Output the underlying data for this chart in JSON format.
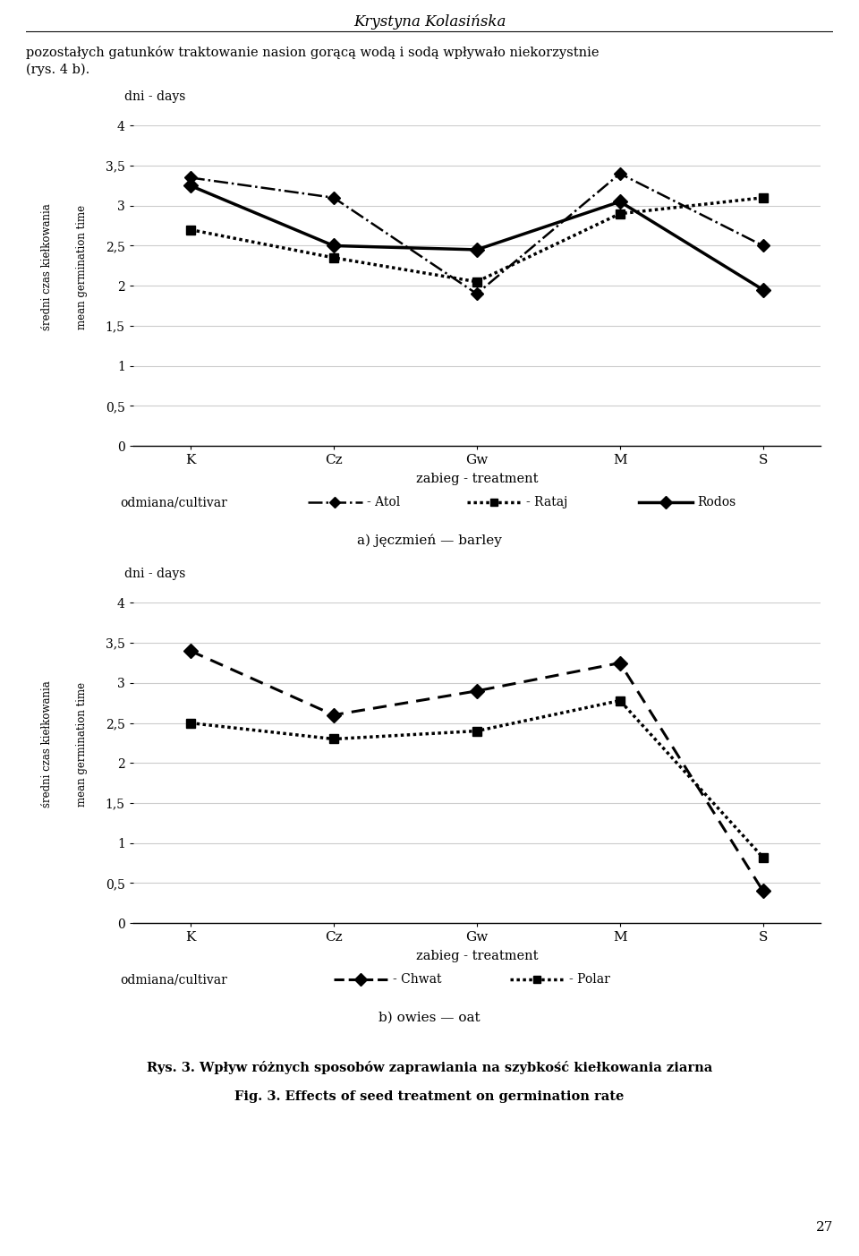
{
  "page_title": "Krystyna Kolasińska",
  "intro_line1": "pozostałych gatunków traktowanie nasion gorącą wodą i sodą wpływało niekorzystnie",
  "intro_line2": "(rys. 4 b).",
  "chart1": {
    "title_y": "dni - days",
    "xlabel": "zabieg - treatment",
    "ylabel1": "średni czas kiełkowania",
    "ylabel2": "mean germination time",
    "xticks": [
      "K",
      "Cz",
      "Gw",
      "M",
      "S"
    ],
    "ylim": [
      0,
      4
    ],
    "yticks": [
      0,
      0.5,
      1,
      1.5,
      2,
      2.5,
      3,
      3.5,
      4
    ],
    "series": {
      "Atol": [
        3.35,
        3.1,
        1.9,
        3.4,
        2.5
      ],
      "Rataj": [
        2.7,
        2.35,
        2.05,
        2.9,
        3.1
      ],
      "Rodos": [
        3.25,
        2.5,
        2.45,
        3.05,
        1.95
      ]
    },
    "legend_label": "odmiana/cultivar",
    "subtitle": "a) jęczmień — barley"
  },
  "chart2": {
    "title_y": "dni - days",
    "xlabel": "zabieg - treatment",
    "ylabel1": "średni czas kiełkowania",
    "ylabel2": "mean germination time",
    "xticks": [
      "K",
      "Cz",
      "Gw",
      "M",
      "S"
    ],
    "ylim": [
      0,
      4
    ],
    "yticks": [
      0,
      0.5,
      1,
      1.5,
      2,
      2.5,
      3,
      3.5,
      4
    ],
    "series": {
      "Chwat": [
        3.4,
        2.6,
        2.9,
        3.25,
        0.4
      ],
      "Polar": [
        2.5,
        2.3,
        2.4,
        2.78,
        0.82
      ]
    },
    "legend_label": "odmiana/cultivar",
    "subtitle": "b) owies — oat"
  },
  "figure_caption_pl": "Rys. 3. Wpływ różnych sposobów zaprawiania na szybkość kiełkowania ziarna",
  "figure_caption_en": "Fig. 3. Effects of seed treatment on germination rate",
  "page_number": "27",
  "bg_color": "#ffffff"
}
